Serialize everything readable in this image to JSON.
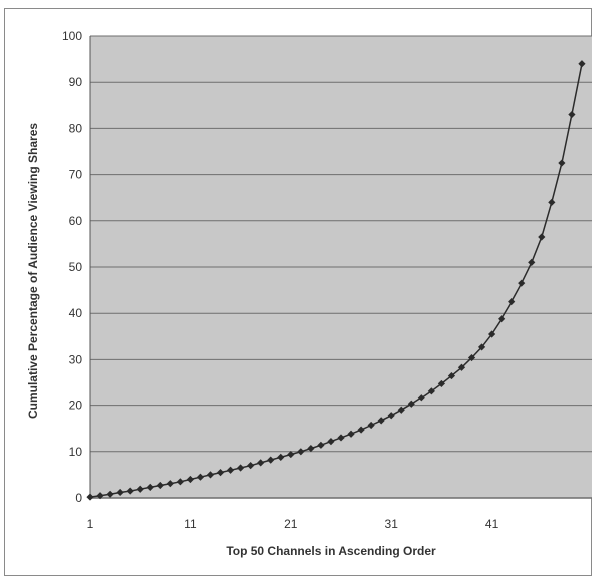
{
  "chart_data": {
    "type": "line",
    "title": "",
    "xlabel": "Top 50 Channels in Ascending Order",
    "ylabel": "Cumulative Percentage of Audience Viewing Shares",
    "xlim": [
      1,
      51
    ],
    "ylim": [
      0,
      100
    ],
    "x_ticks": [
      1,
      11,
      21,
      31,
      41
    ],
    "y_ticks": [
      0,
      10,
      20,
      30,
      40,
      50,
      60,
      70,
      80,
      90,
      100
    ],
    "grid": "horizontal",
    "legend": "none",
    "colors": {
      "plot_bg": "#c8c8c8",
      "gridline": "#6e6e6e",
      "series": "#2b2b2b"
    },
    "series": [
      {
        "x": [
          1,
          2,
          3,
          4,
          5,
          6,
          7,
          8,
          9,
          10,
          11,
          12,
          13,
          14,
          15,
          16,
          17,
          18,
          19,
          20,
          21,
          22,
          23,
          24,
          25,
          26,
          27,
          28,
          29,
          30,
          31,
          32,
          33,
          34,
          35,
          36,
          37,
          38,
          39,
          40,
          41,
          42,
          43,
          44,
          45,
          46,
          47,
          48,
          49,
          50
        ],
        "values": [
          0.2,
          0.5,
          0.8,
          1.2,
          1.5,
          1.9,
          2.3,
          2.7,
          3.1,
          3.5,
          4.0,
          4.5,
          5.0,
          5.5,
          6.0,
          6.5,
          7.0,
          7.6,
          8.2,
          8.8,
          9.4,
          10.0,
          10.7,
          11.4,
          12.2,
          13.0,
          13.8,
          14.7,
          15.7,
          16.7,
          17.8,
          19.0,
          20.3,
          21.7,
          23.2,
          24.8,
          26.5,
          28.3,
          30.4,
          32.7,
          35.5,
          38.8,
          42.5,
          46.5,
          51.0,
          56.5,
          64.0,
          72.5,
          83.0,
          94.0
        ]
      }
    ]
  }
}
